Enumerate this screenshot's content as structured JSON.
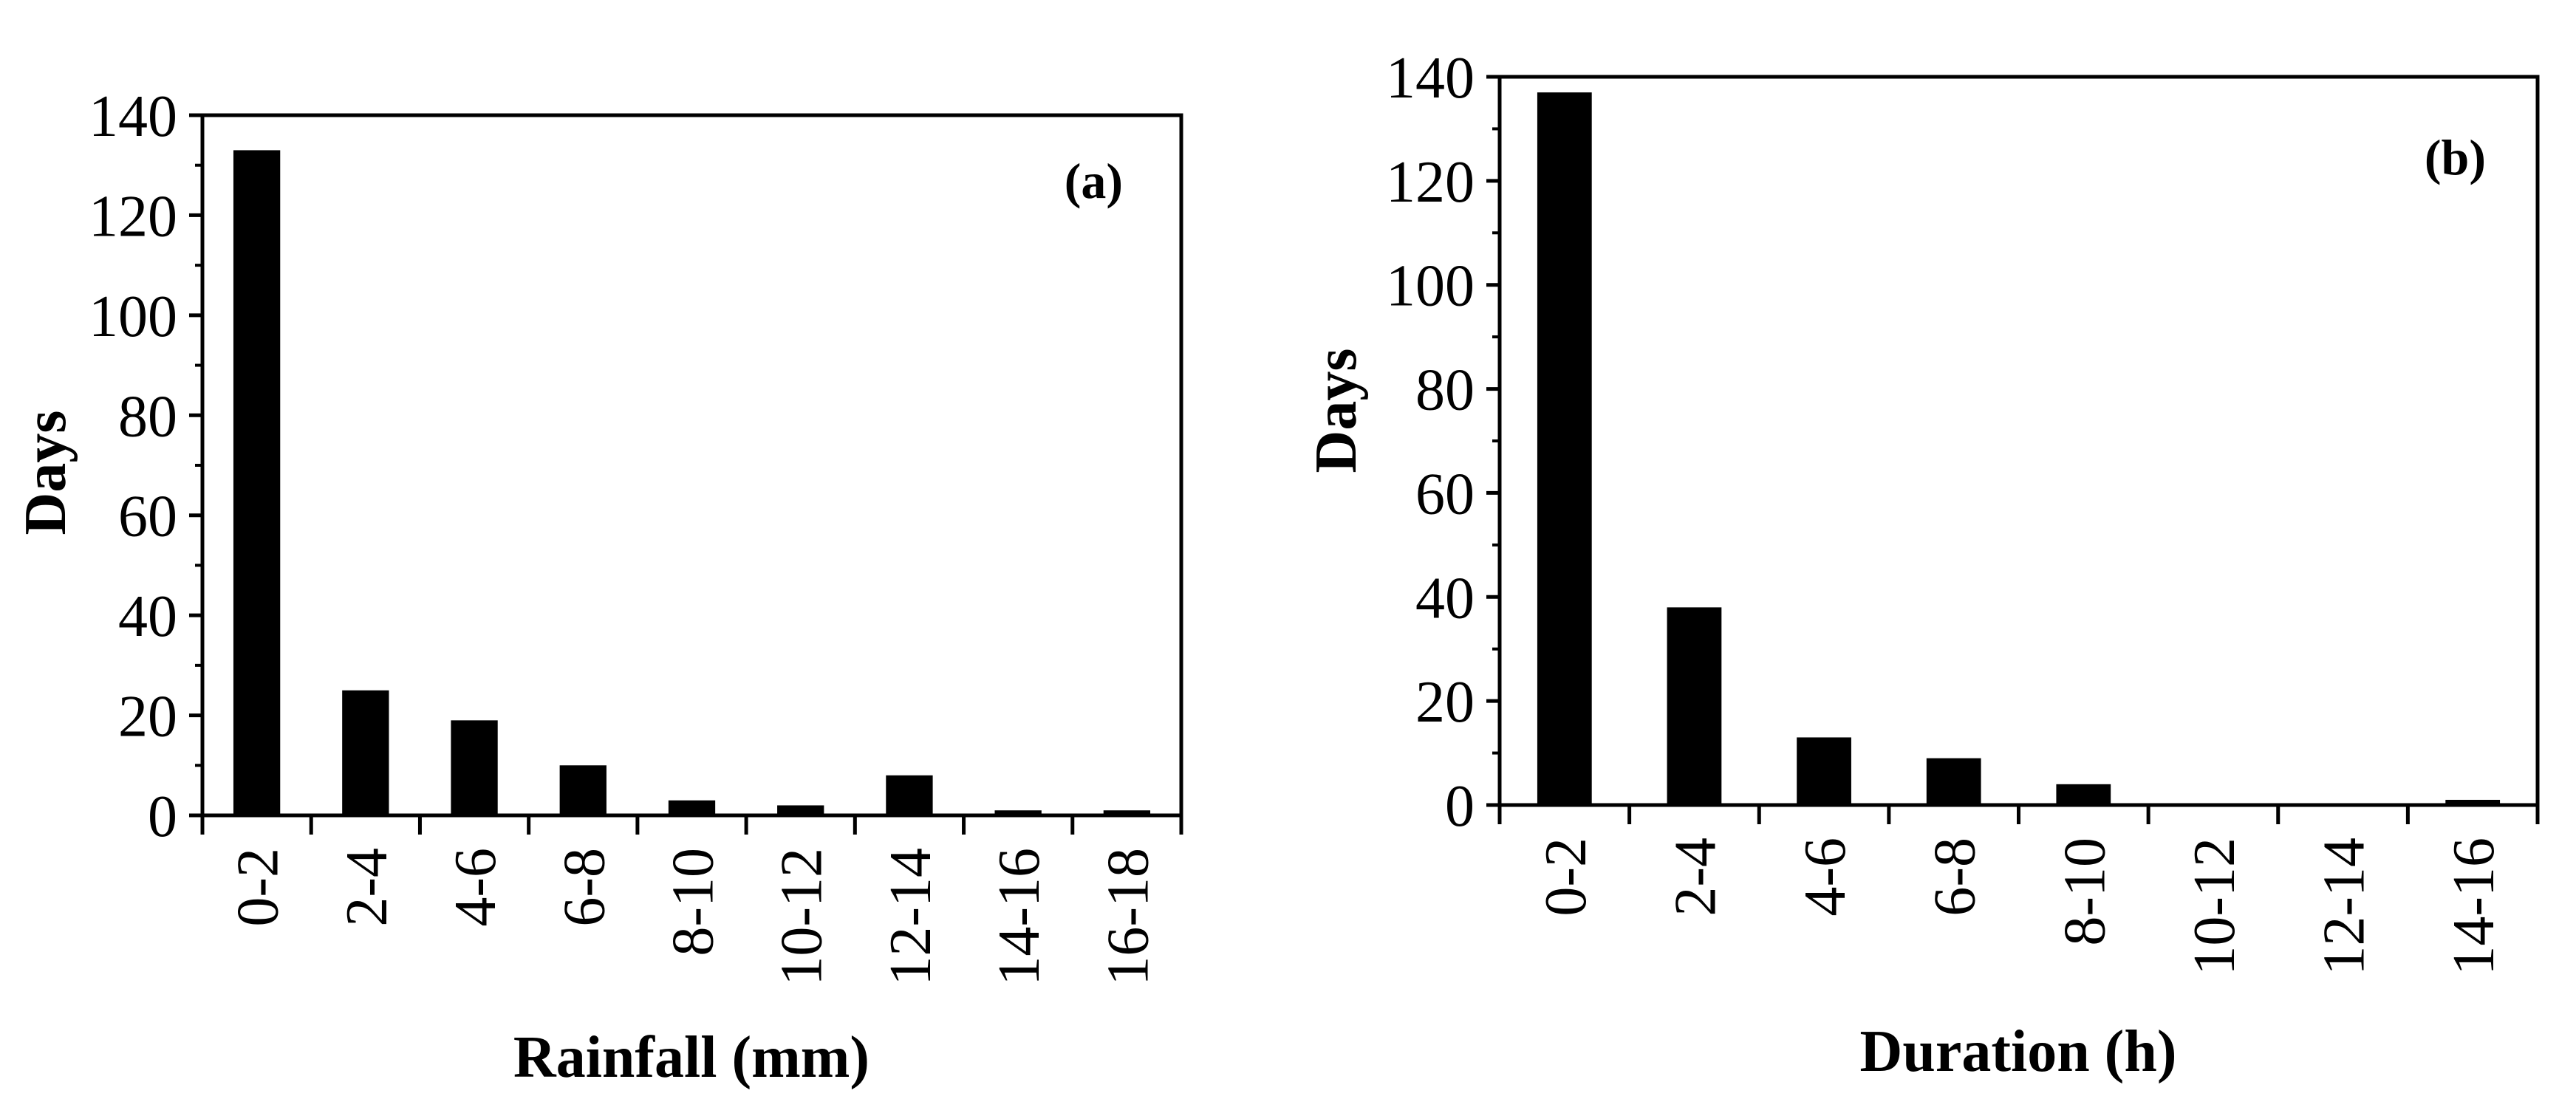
{
  "chart_data": [
    {
      "type": "bar",
      "panel_label": "(a)",
      "categories": [
        "0-2",
        "2-4",
        "4-6",
        "6-8",
        "8-10",
        "10-12",
        "12-14",
        "14-16",
        "16-18"
      ],
      "values": [
        133,
        25,
        19,
        10,
        3,
        2,
        8,
        1,
        1
      ],
      "xlabel": "Rainfall (mm)",
      "ylabel": "Days",
      "ylim": [
        0,
        140
      ],
      "yticks": [
        0,
        20,
        40,
        60,
        80,
        100,
        120,
        140
      ],
      "ytick_labels": [
        "0",
        "20",
        "40",
        "60",
        "80",
        "100",
        "120",
        "140"
      ],
      "bar_color": "#000000",
      "grid": false
    },
    {
      "type": "bar",
      "panel_label": "(b)",
      "categories": [
        "0-2",
        "2-4",
        "4-6",
        "6-8",
        "8-10",
        "10-12",
        "12-14",
        "14-16"
      ],
      "values": [
        137,
        38,
        13,
        9,
        4,
        0,
        0,
        1
      ],
      "xlabel": "Duration (h)",
      "ylabel": "Days",
      "ylim": [
        0,
        140
      ],
      "yticks": [
        0,
        20,
        40,
        60,
        80,
        100,
        120,
        140
      ],
      "ytick_labels": [
        "0",
        "20",
        "40",
        "60",
        "80",
        "100",
        "120",
        "140"
      ],
      "bar_color": "#000000",
      "grid": false
    }
  ]
}
